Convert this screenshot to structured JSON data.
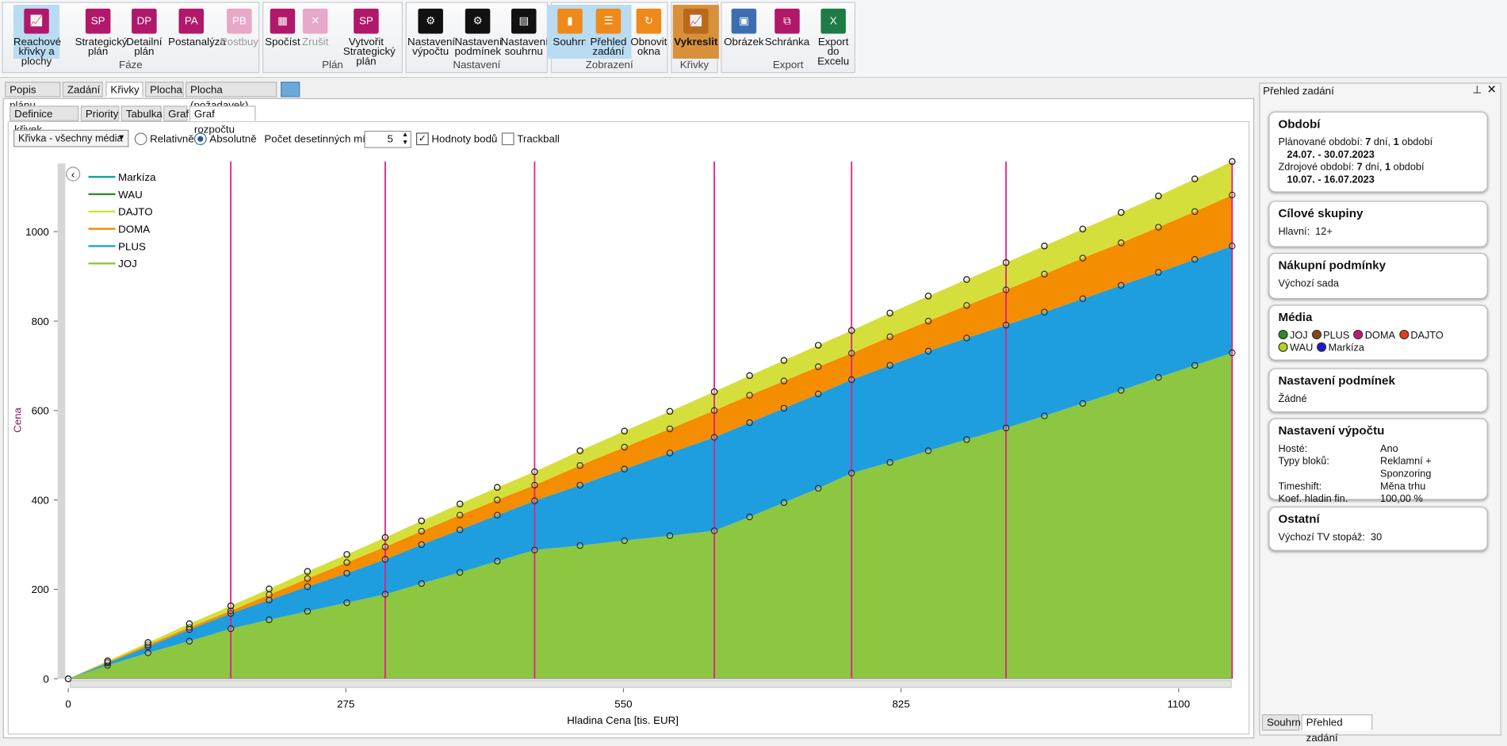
{
  "ribbon": {
    "groups": [
      {
        "name": "Fáze",
        "buttons": [
          {
            "label": [
              "Reachové",
              "křivky a plochy"
            ]
          },
          {
            "icon": "SP",
            "label": [
              "Strategický",
              "plán"
            ]
          },
          {
            "icon": "DP",
            "label": [
              "Detailní",
              "plán"
            ]
          },
          {
            "icon": "PA",
            "label": [
              "Postanalýza"
            ]
          },
          {
            "icon": "PB",
            "label": [
              "Postbuy"
            ]
          }
        ]
      },
      {
        "name": "Plán",
        "buttons": [
          {
            "label": [
              "Spočíst"
            ]
          },
          {
            "label": [
              "Zrušit"
            ]
          },
          {
            "icon": "SP",
            "label": [
              "Vytvořit",
              "Strategický plán"
            ]
          }
        ]
      },
      {
        "name": "Nastavení",
        "buttons": [
          {
            "label": [
              "Nastavení",
              "výpočtu"
            ]
          },
          {
            "label": [
              "Nastavení",
              "podmínek"
            ]
          },
          {
            "label": [
              "Nastavení",
              "souhrnu"
            ]
          }
        ]
      },
      {
        "name": "Zobrazení",
        "buttons": [
          {
            "label": [
              "Souhrn"
            ]
          },
          {
            "label": [
              "Přehled",
              "zadání"
            ]
          },
          {
            "label": [
              "Obnovit",
              "okna"
            ]
          }
        ]
      },
      {
        "name": "Křivky",
        "buttons": [
          {
            "label": [
              "Vykreslit"
            ]
          }
        ]
      },
      {
        "name": "Export",
        "buttons": [
          {
            "label": [
              "Obrázek"
            ]
          },
          {
            "label": [
              "Schránka"
            ]
          },
          {
            "label": [
              "Export",
              "do Excelu"
            ]
          }
        ]
      }
    ]
  },
  "tabs": [
    "Popis plánu",
    "Zadání",
    "Křivky",
    "Plocha",
    "Plocha (požadavek)"
  ],
  "subtabs": [
    "Definice křivek",
    "Priority",
    "Tabulka",
    "Graf",
    "Graf rozpočtu"
  ],
  "toolbar": {
    "dropdown": "Křivka - všechny média",
    "relative": "Relativně",
    "absolute": "Absolutně",
    "decimals_label": "Počet desetinných míst:",
    "decimals": "5",
    "point_values": "Hodnoty bodů",
    "trackball": "Trackball"
  },
  "chart_data": {
    "type": "area",
    "stacked": true,
    "legend": "top-left",
    "markers": true,
    "xlabel": "Hladina Cena [tis. EUR]",
    "ylabel": "Cena",
    "x": [
      0,
      39,
      79,
      120,
      161,
      199,
      237,
      276,
      314,
      350,
      388,
      425,
      462,
      507,
      551,
      596,
      640,
      675,
      709,
      743,
      776,
      814,
      852,
      890,
      929,
      967,
      1005,
      1043,
      1080,
      1116,
      1153
    ],
    "series": [
      {
        "name": "JOJ",
        "color": "#8dc641",
        "values": [
          0,
          30,
          58,
          84,
          112,
          132,
          151,
          170,
          189,
          213,
          238,
          263,
          288,
          298,
          309,
          320,
          331,
          362,
          394,
          426,
          460,
          484,
          510,
          535,
          561,
          588,
          616,
          645,
          674,
          701,
          729
        ]
      },
      {
        "name": "PLUS",
        "color": "#1e9edf",
        "values": [
          0,
          5,
          14,
          26,
          34,
          44,
          55,
          66,
          78,
          87,
          95,
          103,
          110,
          135,
          160,
          185,
          209,
          211,
          211,
          211,
          209,
          217,
          223,
          227,
          230,
          232,
          234,
          235,
          235,
          237,
          239
        ]
      },
      {
        "name": "DOMA",
        "color": "#f48d00",
        "values": [
          0,
          2,
          4,
          5,
          6,
          12,
          18,
          24,
          28,
          30,
          33,
          34,
          35,
          44,
          49,
          54,
          60,
          61,
          61,
          61,
          59,
          64,
          67,
          73,
          79,
          85,
          91,
          95,
          101,
          107,
          114
        ]
      },
      {
        "name": "DAJTO",
        "color": "#d4df3b",
        "values": [
          0,
          3,
          5,
          8,
          11,
          13,
          16,
          18,
          21,
          23,
          25,
          28,
          30,
          33,
          36,
          39,
          42,
          44,
          46,
          48,
          51,
          53,
          56,
          58,
          61,
          63,
          65,
          68,
          70,
          73,
          75
        ]
      },
      {
        "name": "WAU",
        "color": "#2e8b2e",
        "values": [
          0,
          0,
          0,
          0,
          0,
          0,
          0,
          0,
          0,
          0,
          0,
          0,
          0,
          0,
          0,
          0,
          0,
          0,
          0,
          0,
          0,
          0,
          0,
          0,
          0,
          0,
          0,
          0,
          0,
          0,
          0
        ]
      },
      {
        "name": "Markíza",
        "color": "#1aa3a3",
        "values": [
          0,
          0,
          0,
          0,
          0,
          0,
          0,
          0,
          0,
          0,
          0,
          0,
          0,
          0,
          0,
          0,
          0,
          0,
          0,
          0,
          0,
          0,
          0,
          0,
          0,
          0,
          0,
          0,
          0,
          0,
          0
        ]
      }
    ],
    "xlim": [
      0,
      1153
    ],
    "ylim": [
      0,
      1157
    ],
    "xticks": [
      0,
      275,
      550,
      825,
      1100
    ],
    "yticks": [
      0,
      200,
      400,
      600,
      800,
      1000
    ],
    "vlines": [
      161,
      314,
      462,
      640,
      776,
      929,
      1153
    ],
    "vline_color": "#e0208a"
  },
  "panel": {
    "title": "Přehled zadání",
    "period": {
      "title": "Období",
      "items": [
        {
          "label": "Plánované období:",
          "days": "7",
          "days_unit": "dní,",
          "count": "1",
          "count_unit": "období",
          "dates": "24.07. - 30.07.2023"
        },
        {
          "label": "Zdrojové období:",
          "days": "7",
          "days_unit": "dní,",
          "count": "1",
          "count_unit": "období",
          "dates": "10.07. - 16.07.2023"
        }
      ]
    },
    "groups": {
      "title": "Cílové skupiny",
      "text": "Hlavní:  12+"
    },
    "buying": {
      "title": "Nákupní podmínky",
      "text": "Výchozí sada"
    },
    "media": {
      "title": "Média",
      "items": [
        {
          "name": "JOJ",
          "color": "#2a8a2a"
        },
        {
          "name": "PLUS",
          "color": "#8b4513"
        },
        {
          "name": "DOMA",
          "color": "#c0187a"
        },
        {
          "name": "DAJTO",
          "color": "#e04020"
        },
        {
          "name": "WAU",
          "color": "#b8d020"
        },
        {
          "name": "Markíza",
          "color": "#1a1ad0"
        }
      ]
    },
    "conditions": {
      "title": "Nastavení podmínek",
      "text": "Žádné"
    },
    "calc": {
      "title": "Nastavení výpočtu",
      "rows": [
        [
          "Hosté:",
          "Ano"
        ],
        [
          "Typy bloků:",
          "Reklamní + Sponzoring"
        ],
        [
          "Timeshift:",
          "Měna trhu"
        ],
        [
          "Koef. hladin fin. funkce:",
          "100,00 %"
        ]
      ]
    },
    "other": {
      "title": "Ostatní",
      "text": "Výchozí TV stopáž:  30"
    },
    "tabs": [
      "Souhrn",
      "Přehled zadání"
    ]
  }
}
